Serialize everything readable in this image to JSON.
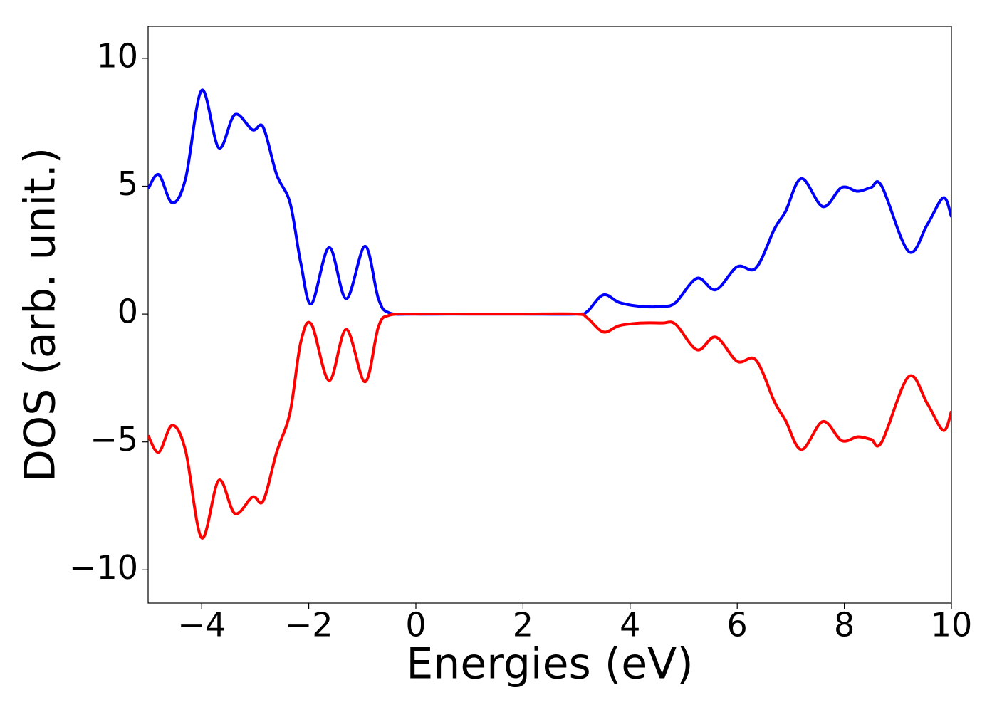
{
  "chart_data": {
    "type": "line",
    "xlabel": "Energies (eV)",
    "ylabel": "DOS (arb. unit.)",
    "x": [
      -5,
      -4.8,
      -4.55,
      -4.3,
      -4,
      -3.68,
      -3.38,
      -3.05,
      -2.85,
      -2.6,
      -2.35,
      -2.15,
      -1.95,
      -1.62,
      -1.3,
      -0.95,
      -0.7,
      -0.5,
      0,
      1,
      2,
      3,
      3.2,
      3.5,
      3.8,
      4.2,
      4.6,
      4.85,
      5.25,
      5.6,
      6,
      6.35,
      6.7,
      6.9,
      7.2,
      7.6,
      7.95,
      8.25,
      8.5,
      8.7,
      9.2,
      9.55,
      9.85,
      10
    ],
    "series": [
      {
        "color": "#0000ff",
        "values": [
          4.9,
          5.45,
          4.35,
          5.3,
          8.75,
          6.5,
          7.8,
          7.2,
          7.3,
          5.45,
          4.35,
          2.0,
          0.4,
          2.6,
          0.6,
          2.65,
          0.6,
          0.05,
          0,
          0,
          0,
          0,
          0.1,
          0.75,
          0.45,
          0.3,
          0.3,
          0.45,
          1.4,
          0.95,
          1.85,
          1.8,
          3.35,
          4.0,
          5.3,
          4.2,
          4.95,
          4.8,
          4.95,
          5.0,
          2.45,
          3.5,
          4.55,
          3.8
        ]
      },
      {
        "color": "#ff0000",
        "values": [
          -4.75,
          -5.4,
          -4.35,
          -5.35,
          -8.75,
          -6.5,
          -7.8,
          -7.15,
          -7.3,
          -5.4,
          -3.85,
          -1.1,
          -0.4,
          -2.6,
          -0.6,
          -2.65,
          -0.5,
          -0.05,
          0,
          0,
          0,
          0,
          -0.15,
          -0.7,
          -0.45,
          -0.35,
          -0.35,
          -0.4,
          -1.4,
          -0.9,
          -1.85,
          -1.8,
          -3.45,
          -4.15,
          -5.3,
          -4.2,
          -4.95,
          -4.8,
          -4.9,
          -5.0,
          -2.45,
          -3.5,
          -4.55,
          -3.8
        ]
      }
    ],
    "xlim": [
      -5,
      10
    ],
    "ylim": [
      -11.3,
      11.25
    ],
    "xticks": [
      {
        "value": -4,
        "label": "−4"
      },
      {
        "value": -2,
        "label": "−2"
      },
      0,
      2,
      4,
      6,
      8,
      10
    ],
    "yticks": [
      {
        "value": -10,
        "label": "−10"
      },
      {
        "value": -5,
        "label": "−5"
      },
      0,
      5,
      10
    ],
    "grid": false
  }
}
